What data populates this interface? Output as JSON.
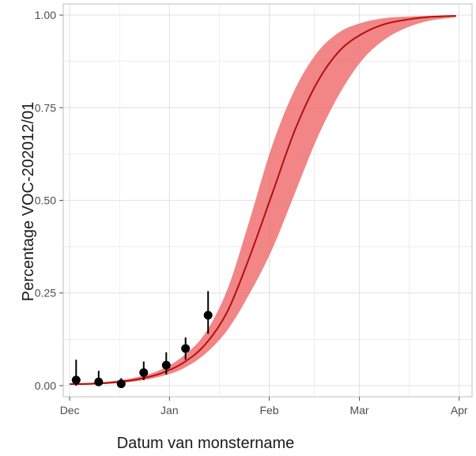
{
  "chart_data": {
    "type": "line",
    "xlabel": "Datum van monstername",
    "ylabel": "Percentage VOC-202012/01",
    "x_axis": {
      "type": "date",
      "range": [
        "2020-11-29",
        "2021-04-05"
      ],
      "ticks": [
        {
          "value": "2020-12-01",
          "label": "Dec"
        },
        {
          "value": "2021-01-01",
          "label": "Jan"
        },
        {
          "value": "2021-02-01",
          "label": "Feb"
        },
        {
          "value": "2021-03-01",
          "label": "Mar"
        },
        {
          "value": "2021-04-01",
          "label": "Apr"
        }
      ]
    },
    "y_axis": {
      "range": [
        -0.03,
        1.03
      ],
      "ticks": [
        {
          "value": 0.0,
          "label": "0.00"
        },
        {
          "value": 0.25,
          "label": "0.25"
        },
        {
          "value": 0.5,
          "label": "0.50"
        },
        {
          "value": 0.75,
          "label": "0.75"
        },
        {
          "value": 1.0,
          "label": "1.00"
        }
      ]
    },
    "grid": true,
    "colors": {
      "line": "#b01010",
      "band": "#f07070",
      "points": "#000000",
      "grid": "#e3e3e3",
      "panel_border": "#bdbdbd"
    },
    "series": [
      {
        "kind": "fit_line",
        "points": [
          {
            "x": "2020-12-01",
            "y": 0.004
          },
          {
            "x": "2020-12-08",
            "y": 0.005
          },
          {
            "x": "2020-12-15",
            "y": 0.009
          },
          {
            "x": "2020-12-22",
            "y": 0.017
          },
          {
            "x": "2020-12-29",
            "y": 0.032
          },
          {
            "x": "2021-01-05",
            "y": 0.06
          },
          {
            "x": "2021-01-12",
            "y": 0.11
          },
          {
            "x": "2021-01-19",
            "y": 0.2
          },
          {
            "x": "2021-01-26",
            "y": 0.35
          },
          {
            "x": "2021-02-02",
            "y": 0.52
          },
          {
            "x": "2021-02-09",
            "y": 0.69
          },
          {
            "x": "2021-02-16",
            "y": 0.82
          },
          {
            "x": "2021-02-23",
            "y": 0.905
          },
          {
            "x": "2021-03-02",
            "y": 0.95
          },
          {
            "x": "2021-03-09",
            "y": 0.976
          },
          {
            "x": "2021-03-16",
            "y": 0.988
          },
          {
            "x": "2021-03-23",
            "y": 0.995
          },
          {
            "x": "2021-03-31",
            "y": 0.998
          }
        ]
      },
      {
        "kind": "confidence_band",
        "points": [
          {
            "x": "2020-12-01",
            "lower": 0.002,
            "upper": 0.006
          },
          {
            "x": "2020-12-08",
            "lower": 0.003,
            "upper": 0.008
          },
          {
            "x": "2020-12-15",
            "lower": 0.006,
            "upper": 0.013
          },
          {
            "x": "2020-12-22",
            "lower": 0.012,
            "upper": 0.023
          },
          {
            "x": "2020-12-29",
            "lower": 0.024,
            "upper": 0.042
          },
          {
            "x": "2021-01-05",
            "lower": 0.045,
            "upper": 0.078
          },
          {
            "x": "2021-01-12",
            "lower": 0.085,
            "upper": 0.14
          },
          {
            "x": "2021-01-19",
            "lower": 0.15,
            "upper": 0.26
          },
          {
            "x": "2021-01-26",
            "lower": 0.25,
            "upper": 0.45
          },
          {
            "x": "2021-02-02",
            "lower": 0.37,
            "upper": 0.65
          },
          {
            "x": "2021-02-09",
            "lower": 0.52,
            "upper": 0.8
          },
          {
            "x": "2021-02-16",
            "lower": 0.67,
            "upper": 0.9
          },
          {
            "x": "2021-02-23",
            "lower": 0.79,
            "upper": 0.955
          },
          {
            "x": "2021-03-02",
            "lower": 0.88,
            "upper": 0.98
          },
          {
            "x": "2021-03-09",
            "lower": 0.935,
            "upper": 0.992
          },
          {
            "x": "2021-03-16",
            "lower": 0.967,
            "upper": 0.996
          },
          {
            "x": "2021-03-23",
            "lower": 0.985,
            "upper": 0.998
          },
          {
            "x": "2021-03-31",
            "lower": 0.994,
            "upper": 0.999
          }
        ]
      },
      {
        "kind": "observations",
        "points": [
          {
            "x": "2020-12-03",
            "y": 0.015,
            "lower": 0.0,
            "upper": 0.07
          },
          {
            "x": "2020-12-10",
            "y": 0.01,
            "lower": 0.0,
            "upper": 0.04
          },
          {
            "x": "2020-12-17",
            "y": 0.005,
            "lower": 0.0,
            "upper": 0.02
          },
          {
            "x": "2020-12-24",
            "y": 0.035,
            "lower": 0.015,
            "upper": 0.065
          },
          {
            "x": "2020-12-31",
            "y": 0.055,
            "lower": 0.03,
            "upper": 0.09
          },
          {
            "x": "2021-01-06",
            "y": 0.1,
            "lower": 0.07,
            "upper": 0.13
          },
          {
            "x": "2021-01-13",
            "y": 0.19,
            "lower": 0.14,
            "upper": 0.255
          }
        ]
      }
    ]
  }
}
